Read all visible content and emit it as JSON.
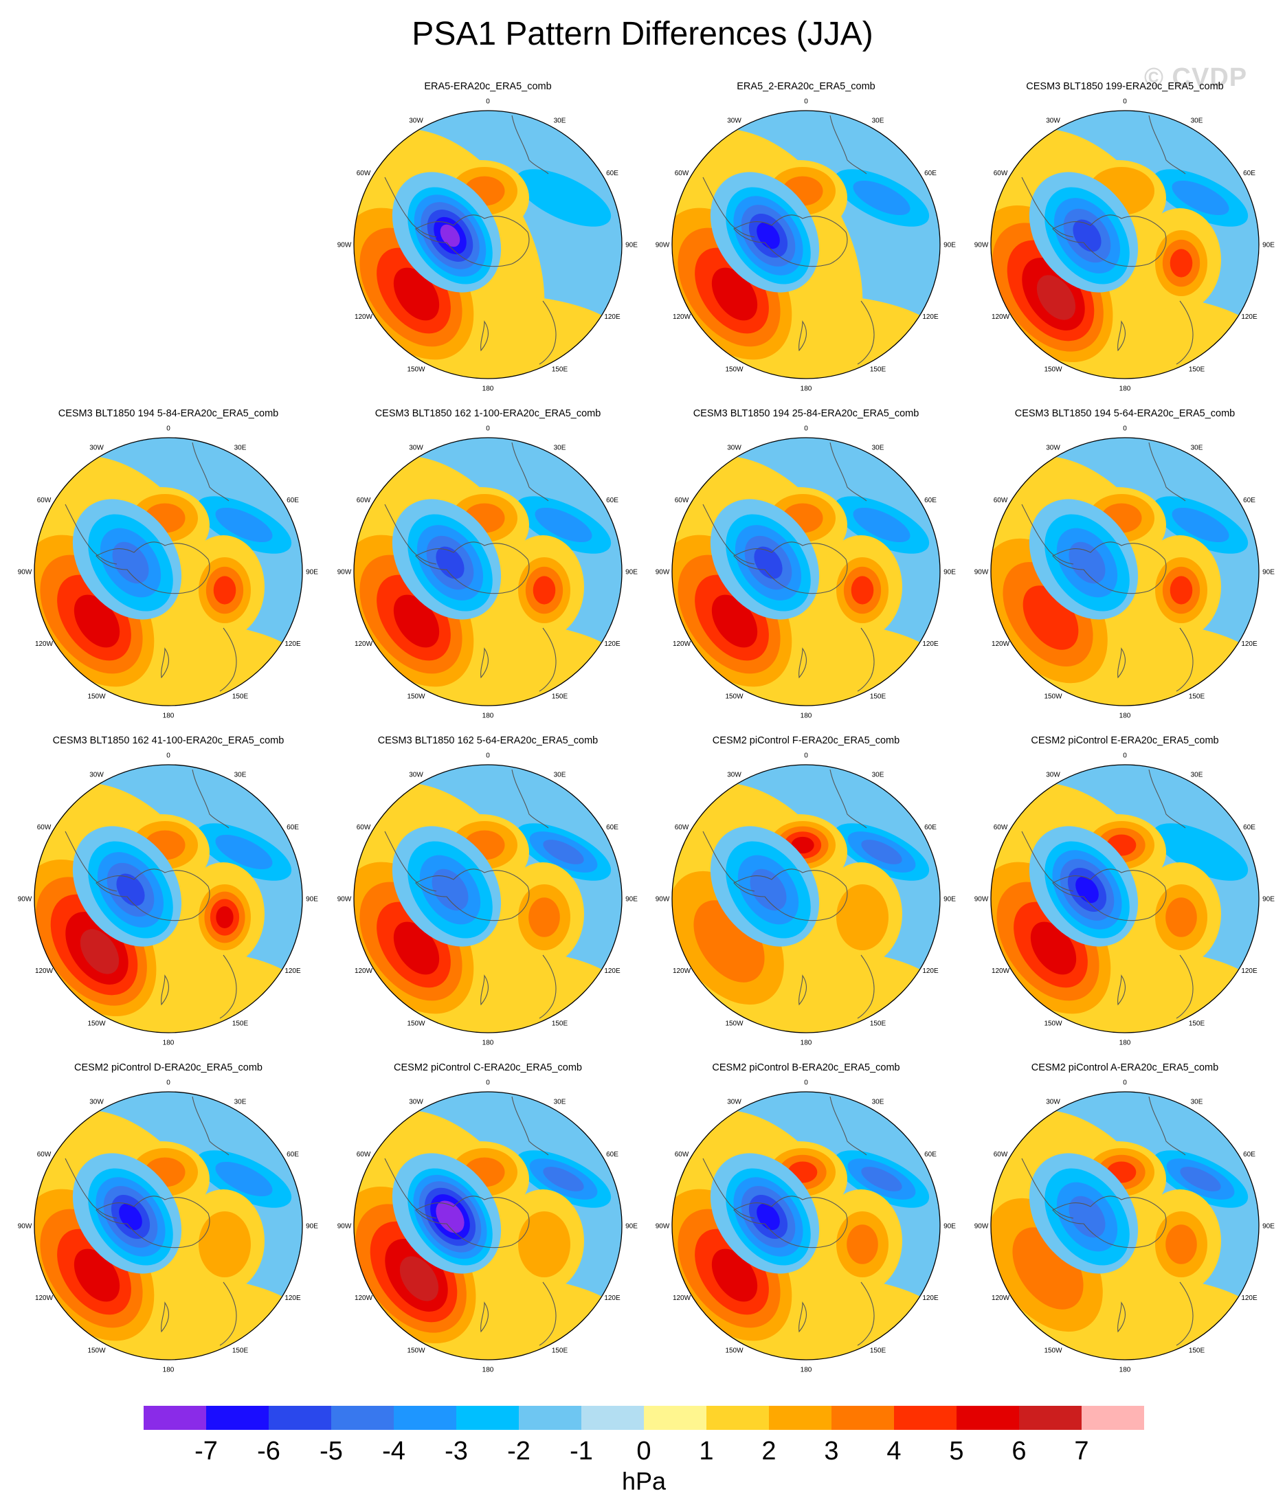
{
  "title": "PSA1 Pattern Differences (JJA)",
  "watermark": "© CVDP",
  "lon_labels": {
    "top": "0",
    "ne30": "30E",
    "ne60": "60E",
    "e90": "90E",
    "se120": "120E",
    "se150": "150E",
    "bottom": "180",
    "sw150": "150W",
    "sw120": "120W",
    "w90": "90W",
    "nw60": "60W",
    "nw30": "30W"
  },
  "panels": [
    {
      "title": "ERA5-ERA20c_ERA5_comb",
      "neg": {
        "depth": 6
      },
      "pos": {
        "depth": 5
      },
      "ant": 2,
      "east": 0,
      "ne": -1
    },
    {
      "title": "ERA5_2-ERA20c_ERA5_comb",
      "neg": {
        "depth": 5
      },
      "pos": {
        "depth": 5
      },
      "ant": 2,
      "east": 0,
      "ne": -2
    },
    {
      "title": "CESM3 BLT1850 199-ERA20c_ERA5_comb",
      "neg": {
        "depth": 4
      },
      "pos": {
        "depth": 6
      },
      "ant": 1,
      "east": 3,
      "ne": -2
    },
    {
      "title": "CESM3 BLT1850 194 5-84-ERA20c_ERA5_comb",
      "neg": {
        "depth": 3
      },
      "pos": {
        "depth": 5
      },
      "ant": 2,
      "east": 3,
      "ne": -2
    },
    {
      "title": "CESM3 BLT1850 162 1-100-ERA20c_ERA5_comb",
      "neg": {
        "depth": 4
      },
      "pos": {
        "depth": 5
      },
      "ant": 2,
      "east": 3,
      "ne": -2
    },
    {
      "title": "CESM3 BLT1850 194 25-84-ERA20c_ERA5_comb",
      "neg": {
        "depth": 4
      },
      "pos": {
        "depth": 5
      },
      "ant": 2,
      "east": 3,
      "ne": -2
    },
    {
      "title": "CESM3 BLT1850 194 5-64-ERA20c_ERA5_comb",
      "neg": {
        "depth": 3
      },
      "pos": {
        "depth": 4
      },
      "ant": 2,
      "east": 3,
      "ne": -2
    },
    {
      "title": "CESM3 BLT1850 162 41-100-ERA20c_ERA5_comb",
      "neg": {
        "depth": 4
      },
      "pos": {
        "depth": 6
      },
      "ant": 2,
      "east": 4,
      "ne": -2
    },
    {
      "title": "CESM3 BLT1850 162 5-64-ERA20c_ERA5_comb",
      "neg": {
        "depth": 3
      },
      "pos": {
        "depth": 5
      },
      "ant": 2,
      "east": 2,
      "ne": -3
    },
    {
      "title": "CESM2 piControl F-ERA20c_ERA5_comb",
      "neg": {
        "depth": 3
      },
      "pos": {
        "depth": 3
      },
      "ant": 4,
      "east": 1,
      "ne": -3
    },
    {
      "title": "CESM2 piControl E-ERA20c_ERA5_comb",
      "neg": {
        "depth": 5
      },
      "pos": {
        "depth": 5
      },
      "ant": 3,
      "east": 2,
      "ne": -1
    },
    {
      "title": "CESM2 piControl D-ERA20c_ERA5_comb",
      "neg": {
        "depth": 5
      },
      "pos": {
        "depth": 5
      },
      "ant": 2,
      "east": 1,
      "ne": -2
    },
    {
      "title": "CESM2 piControl C-ERA20c_ERA5_comb",
      "neg": {
        "depth": 7
      },
      "pos": {
        "depth": 6
      },
      "ant": 2,
      "east": 1,
      "ne": -3
    },
    {
      "title": "CESM2 piControl B-ERA20c_ERA5_comb",
      "neg": {
        "depth": 5
      },
      "pos": {
        "depth": 5
      },
      "ant": 3,
      "east": 2,
      "ne": -3
    },
    {
      "title": "CESM2 piControl A-ERA20c_ERA5_comb",
      "neg": {
        "depth": 3
      },
      "pos": {
        "depth": 3
      },
      "ant": 3,
      "east": 2,
      "ne": -3
    }
  ],
  "colorbar": {
    "colors": [
      "#8a2be8",
      "#1a0dff",
      "#2a48ec",
      "#3878ee",
      "#1e96ff",
      "#00bfff",
      "#6ec6f2",
      "#b3def2",
      "#fff68f",
      "#ffd42a",
      "#ffa800",
      "#ff7800",
      "#ff3000",
      "#e30000",
      "#cc1e1e",
      "#ffb4b4"
    ],
    "labels": [
      "-7",
      "-6",
      "-5",
      "-4",
      "-3",
      "-2",
      "-1",
      "0",
      "1",
      "2",
      "3",
      "4",
      "5",
      "6",
      "7"
    ],
    "unit": "hPa"
  }
}
